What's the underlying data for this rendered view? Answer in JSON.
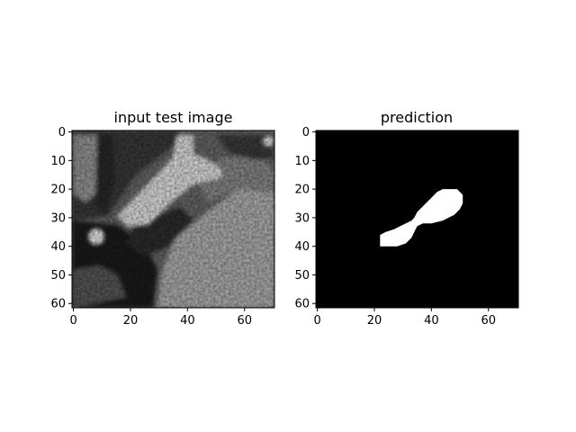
{
  "chart_data": [
    {
      "type": "heatmap",
      "title": "input test image",
      "colormap": "gray",
      "xlim": [
        0,
        71
      ],
      "ylim": [
        62,
        0
      ],
      "xticks": [
        0,
        20,
        40,
        60
      ],
      "yticks": [
        0,
        10,
        20,
        30,
        40,
        50,
        60
      ],
      "xtick_labels": [
        "0",
        "20",
        "40",
        "60"
      ],
      "ytick_labels": [
        "0",
        "10",
        "20",
        "30",
        "40",
        "50",
        "60"
      ],
      "content": "grayscale CT patch: bright diagonal vessel from (29,35) up to (40,18) and (40,5); bright round blob near (8,37); large bright textured region lower-right; dark regions left and bottom-left"
    },
    {
      "type": "heatmap",
      "title": "prediction",
      "colormap": "binary (black background, white mask)",
      "xlim": [
        0,
        71
      ],
      "ylim": [
        62,
        0
      ],
      "xticks": [
        0,
        20,
        40,
        60
      ],
      "yticks": [
        0,
        10,
        20,
        30,
        40,
        50,
        60
      ],
      "xtick_labels": [
        "0",
        "20",
        "40",
        "60"
      ],
      "ytick_labels": [
        "0",
        "10",
        "20",
        "30",
        "40",
        "50",
        "60"
      ],
      "mask_outline": [
        [
          22,
          36
        ],
        [
          24,
          35
        ],
        [
          27,
          34
        ],
        [
          29,
          33
        ],
        [
          31,
          32
        ],
        [
          33,
          31
        ],
        [
          34,
          30
        ],
        [
          35,
          28
        ],
        [
          37,
          26
        ],
        [
          40,
          23
        ],
        [
          42,
          21
        ],
        [
          44,
          20
        ],
        [
          47,
          20
        ],
        [
          49,
          20
        ],
        [
          51,
          22
        ],
        [
          51,
          25
        ],
        [
          50,
          27
        ],
        [
          48,
          29
        ],
        [
          46,
          30
        ],
        [
          44,
          31
        ],
        [
          40,
          32
        ],
        [
          37,
          32
        ],
        [
          35,
          33
        ],
        [
          34,
          35
        ],
        [
          33,
          37
        ],
        [
          31,
          39
        ],
        [
          28,
          40
        ],
        [
          25,
          40
        ],
        [
          22,
          40
        ]
      ]
    }
  ]
}
